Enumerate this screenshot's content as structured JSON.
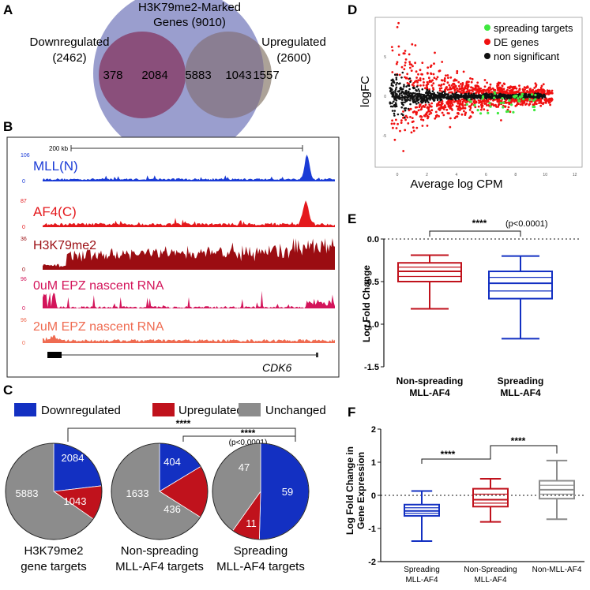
{
  "panel_labels": [
    "A",
    "B",
    "C",
    "D",
    "E",
    "F"
  ],
  "venn": {
    "center_title": "H3K79me2-Marked",
    "center_subtitle": "Genes (9010)",
    "left_title": "Downregulated",
    "left_count": "(2462)",
    "right_title": "Upregulated",
    "right_count": "(2600)",
    "left_only": "378",
    "left_overlap": "2084",
    "center_only": "5883",
    "right_overlap": "1043",
    "right_only": "1557",
    "colors": {
      "left": "#ef6b7b",
      "center": "#8f93c9",
      "right": "#a89d92"
    }
  },
  "tracks": {
    "scale_label": "200 kb",
    "gene_label": "CDK6",
    "items": [
      {
        "name": "MLL(N)",
        "max": "106",
        "min": "0",
        "color": "#1a3bd6"
      },
      {
        "name": "AF4(C)",
        "max": "87",
        "min": "0",
        "color": "#e4181c"
      },
      {
        "name": "H3K79me2",
        "max": "36",
        "min": "0",
        "color": "#9b0d12"
      },
      {
        "name": "0uM EPZ nascent RNA",
        "max": "96",
        "min": "0",
        "color": "#d3145a"
      },
      {
        "name": "2uM EPZ nascent RNA",
        "max": "96",
        "min": "0",
        "color": "#ef6b51"
      }
    ]
  },
  "pies": {
    "legend": [
      {
        "label": "Downregulated",
        "color": "#1330c2"
      },
      {
        "label": "Upregulated",
        "color": "#c0121c"
      },
      {
        "label": "Unchanged",
        "color": "#8c8c8c"
      }
    ],
    "sig_outer": "****",
    "sig_inner": "****",
    "sig_inner_p": "(p<0.0001)",
    "charts": [
      {
        "label1": "H3K79me2",
        "label2": "gene targets",
        "values": [
          2084,
          1043,
          5883
        ]
      },
      {
        "label1": "Non-spreading",
        "label2": "MLL-AF4 targets",
        "values": [
          404,
          436,
          1633
        ]
      },
      {
        "label1": "Spreading",
        "label2": "MLL-AF4 targets",
        "values": [
          59,
          11,
          47
        ]
      }
    ]
  },
  "chart_data": [
    {
      "panel": "D",
      "type": "scatter",
      "xlabel": "Average log CPM",
      "ylabel": "logFC",
      "xlim": [
        -1.5,
        12.5
      ],
      "ylim": [
        -9,
        10
      ],
      "xticks": [
        0,
        2,
        4,
        6,
        8,
        10,
        12
      ],
      "yticks": [
        -5,
        0,
        5
      ],
      "legend": [
        {
          "label": "spreading targets",
          "color": "#3ee83e"
        },
        {
          "label": "DE genes",
          "color": "#f01010"
        },
        {
          "label": "non significant",
          "color": "#111111"
        }
      ]
    },
    {
      "panel": "E",
      "type": "box",
      "ylabel": "Log Fold Change",
      "ylim": [
        -1.5,
        0.0
      ],
      "yticks": [
        0.0,
        -0.5,
        -1.0,
        -1.5
      ],
      "sig": "****",
      "p": "(p<0.0001)",
      "boxes": [
        {
          "label1": "Non-spreading",
          "label2": "MLL-AF4",
          "min": -0.82,
          "q1": -0.5,
          "median": -0.38,
          "q3": -0.28,
          "max": -0.19,
          "color": "#c0121c"
        },
        {
          "label1": "Spreading",
          "label2": "MLL-AF4",
          "min": -1.17,
          "q1": -0.7,
          "median": -0.52,
          "q3": -0.38,
          "max": -0.2,
          "color": "#1330c2"
        }
      ]
    },
    {
      "panel": "F",
      "type": "box",
      "ylabel": "Log Fold Change in Gene Expression",
      "ylim": [
        -2,
        2
      ],
      "yticks": [
        -2,
        -1,
        0,
        1,
        2
      ],
      "sig": [
        "****",
        "****"
      ],
      "boxes": [
        {
          "label1": "Spreading",
          "label2": "MLL-AF4",
          "min": -1.38,
          "q1": -0.62,
          "median": -0.47,
          "q3": -0.28,
          "max": 0.13,
          "color": "#1330c2"
        },
        {
          "label1": "Non-Spreading",
          "label2": "MLL-AF4",
          "min": -0.8,
          "q1": -0.34,
          "median": -0.13,
          "q3": 0.2,
          "max": 0.5,
          "color": "#c0121c"
        },
        {
          "label1": "Non-MLL-AF4",
          "label2": "",
          "min": -0.72,
          "q1": -0.1,
          "median": 0.17,
          "q3": 0.44,
          "max": 1.05,
          "color": "#8c8c8c"
        }
      ]
    }
  ]
}
